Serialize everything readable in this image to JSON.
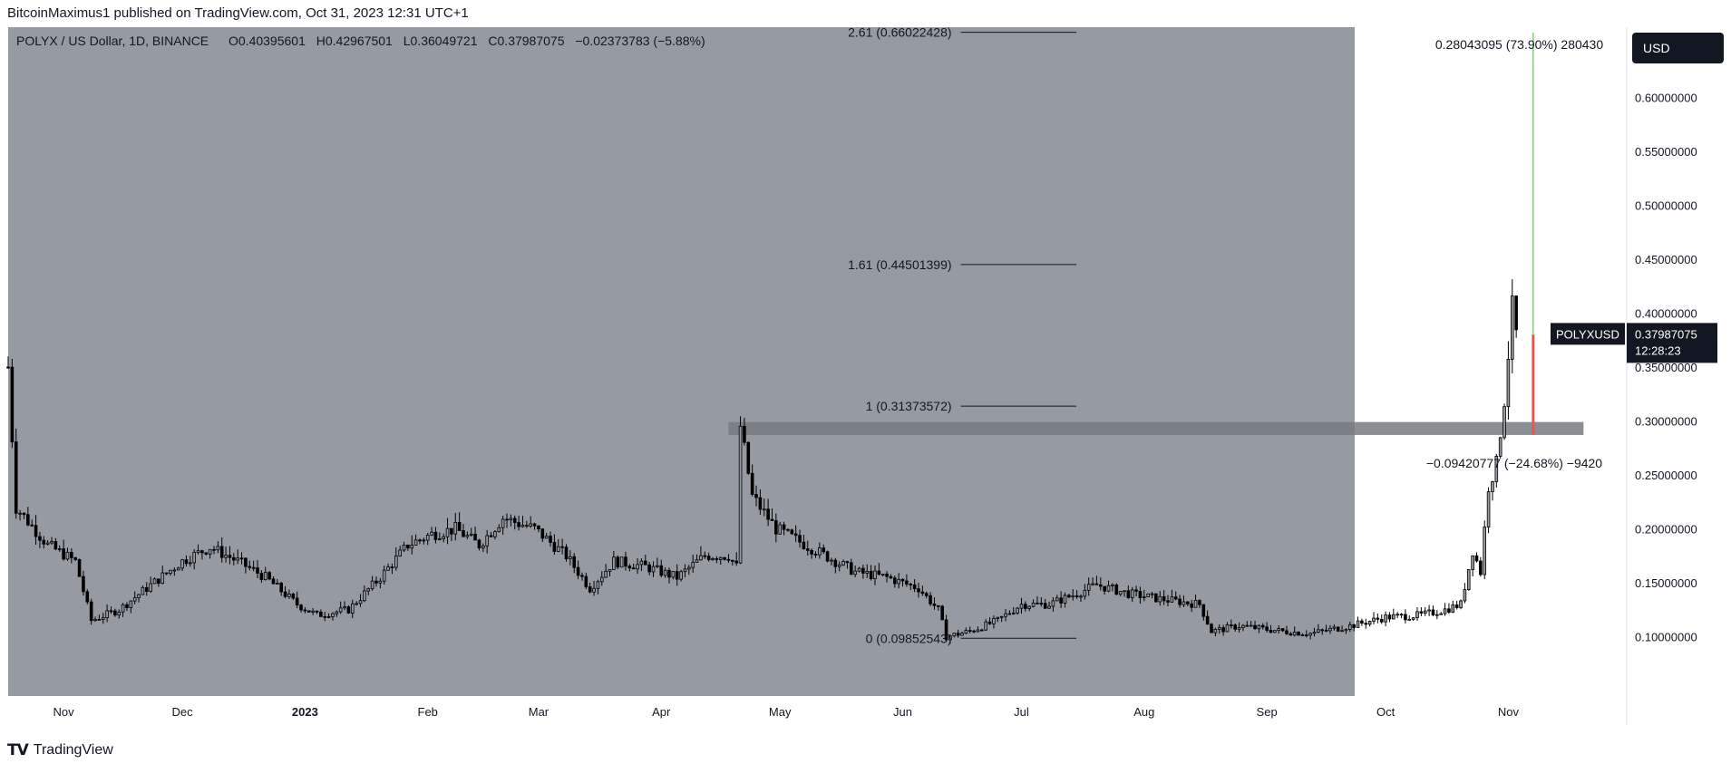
{
  "publish_line": "BitcoinMaximus1 published on TradingView.com, Oct 31, 2023 12:31 UTC+1",
  "footer_brand": "TradingView",
  "colors": {
    "pane_bg": "#959aa3",
    "candle": "#000000",
    "zone": "#777b83",
    "measure_up": "#4caf50",
    "measure_down": "#ef5350"
  },
  "chart_data": {
    "type": "candlestick",
    "symbol_line": {
      "symbol": "POLYX / US Dollar, 1D, BINANCE",
      "o_label": "O",
      "o": "0.40395601",
      "h_label": "H",
      "h": "0.42967501",
      "l_label": "L",
      "l": "0.36049721",
      "c_label": "C",
      "c": "0.37987075",
      "change": "−0.02373783 (−5.88%)"
    },
    "currency_button": "USD",
    "ylim": [
      0.045,
      0.665
    ],
    "y_ticks": [
      {
        "value": 0.6,
        "label": "0.60000000"
      },
      {
        "value": 0.55,
        "label": "0.55000000"
      },
      {
        "value": 0.5,
        "label": "0.50000000"
      },
      {
        "value": 0.45,
        "label": "0.45000000"
      },
      {
        "value": 0.4,
        "label": "0.40000000"
      },
      {
        "value": 0.35,
        "label": "0.35000000"
      },
      {
        "value": 0.3,
        "label": "0.30000000"
      },
      {
        "value": 0.25,
        "label": "0.25000000"
      },
      {
        "value": 0.2,
        "label": "0.20000000"
      },
      {
        "value": 0.15,
        "label": "0.15000000"
      },
      {
        "value": 0.1,
        "label": "0.10000000"
      }
    ],
    "x_range": [
      "2022-10-18",
      "2023-11-30"
    ],
    "x_ticks": [
      {
        "date": "2022-11-01",
        "label": "Nov"
      },
      {
        "date": "2022-12-01",
        "label": "Dec"
      },
      {
        "date": "2023-01-01",
        "label": "2023"
      },
      {
        "date": "2023-02-01",
        "label": "Feb"
      },
      {
        "date": "2023-03-01",
        "label": "Mar"
      },
      {
        "date": "2023-04-01",
        "label": "Apr"
      },
      {
        "date": "2023-05-01",
        "label": "May"
      },
      {
        "date": "2023-06-01",
        "label": "Jun"
      },
      {
        "date": "2023-07-01",
        "label": "Jul"
      },
      {
        "date": "2023-08-01",
        "label": "Aug"
      },
      {
        "date": "2023-09-01",
        "label": "Sep"
      },
      {
        "date": "2023-10-01",
        "label": "Oct"
      },
      {
        "date": "2023-11-01",
        "label": "Nov"
      }
    ],
    "price_anchors": [
      [
        "2022-10-18",
        0.35
      ],
      [
        "2022-10-20",
        0.22
      ],
      [
        "2022-10-28",
        0.185
      ],
      [
        "2022-11-04",
        0.17
      ],
      [
        "2022-11-08",
        0.115
      ],
      [
        "2022-11-15",
        0.125
      ],
      [
        "2022-11-22",
        0.145
      ],
      [
        "2022-12-01",
        0.17
      ],
      [
        "2022-12-08",
        0.183
      ],
      [
        "2022-12-15",
        0.17
      ],
      [
        "2022-12-22",
        0.155
      ],
      [
        "2022-12-30",
        0.13
      ],
      [
        "2023-01-04",
        0.12
      ],
      [
        "2023-01-12",
        0.125
      ],
      [
        "2023-01-20",
        0.155
      ],
      [
        "2023-01-27",
        0.185
      ],
      [
        "2023-02-02",
        0.195
      ],
      [
        "2023-02-08",
        0.2
      ],
      [
        "2023-02-14",
        0.185
      ],
      [
        "2023-02-20",
        0.21
      ],
      [
        "2023-02-28",
        0.2
      ],
      [
        "2023-03-08",
        0.175
      ],
      [
        "2023-03-14",
        0.145
      ],
      [
        "2023-03-20",
        0.17
      ],
      [
        "2023-03-28",
        0.165
      ],
      [
        "2023-04-05",
        0.155
      ],
      [
        "2023-04-12",
        0.175
      ],
      [
        "2023-04-18",
        0.175
      ],
      [
        "2023-04-20",
        0.165
      ],
      [
        "2023-04-21",
        0.295
      ],
      [
        "2023-04-24",
        0.23
      ],
      [
        "2023-04-30",
        0.2
      ],
      [
        "2023-05-10",
        0.18
      ],
      [
        "2023-05-20",
        0.16
      ],
      [
        "2023-05-28",
        0.155
      ],
      [
        "2023-06-05",
        0.145
      ],
      [
        "2023-06-10",
        0.125
      ],
      [
        "2023-06-12",
        0.1
      ],
      [
        "2023-06-18",
        0.105
      ],
      [
        "2023-06-25",
        0.115
      ],
      [
        "2023-07-01",
        0.13
      ],
      [
        "2023-07-08",
        0.13
      ],
      [
        "2023-07-15",
        0.14
      ],
      [
        "2023-07-20",
        0.148
      ],
      [
        "2023-07-28",
        0.14
      ],
      [
        "2023-08-05",
        0.135
      ],
      [
        "2023-08-15",
        0.13
      ],
      [
        "2023-08-18",
        0.105
      ],
      [
        "2023-08-25",
        0.11
      ],
      [
        "2023-09-05",
        0.105
      ],
      [
        "2023-09-12",
        0.103
      ],
      [
        "2023-09-22",
        0.11
      ],
      [
        "2023-10-01",
        0.118
      ],
      [
        "2023-10-10",
        0.12
      ],
      [
        "2023-10-16",
        0.125
      ],
      [
        "2023-10-20",
        0.13
      ],
      [
        "2023-10-23",
        0.18
      ],
      [
        "2023-10-25",
        0.16
      ],
      [
        "2023-10-27",
        0.24
      ],
      [
        "2023-10-29",
        0.26
      ],
      [
        "2023-10-31",
        0.32
      ],
      [
        "2023-11-02",
        0.404
      ],
      [
        "2023-11-03",
        0.38
      ]
    ],
    "fib_levels": [
      {
        "ratio": "2.61",
        "price": "0.66022428",
        "value": 0.66022428
      },
      {
        "ratio": "1.61",
        "price": "0.44501399",
        "value": 0.44501399
      },
      {
        "ratio": "1",
        "price": "0.31373572",
        "value": 0.31373572
      },
      {
        "ratio": "0",
        "price": "0.09852543",
        "value": 0.09852543
      }
    ],
    "fib_x_range": [
      "2023-06-12",
      "2023-07-08"
    ],
    "horizontal_zone": {
      "from": 0.287,
      "to": 0.299,
      "x_range": [
        "2023-04-18",
        "2023-11-20"
      ]
    },
    "measure_up": {
      "label": "0.28043095 (73.90%) 280430",
      "from": 0.38,
      "to": 0.66
    },
    "measure_down": {
      "label": "−0.09420777 (−24.68%) −9420",
      "from": 0.38,
      "to": 0.287
    },
    "measure_date": "2023-11-05",
    "last_price_tag": {
      "symbol": "POLYXUSD",
      "price": "0.37987075",
      "countdown": "12:28:23",
      "value": 0.37987075
    }
  }
}
